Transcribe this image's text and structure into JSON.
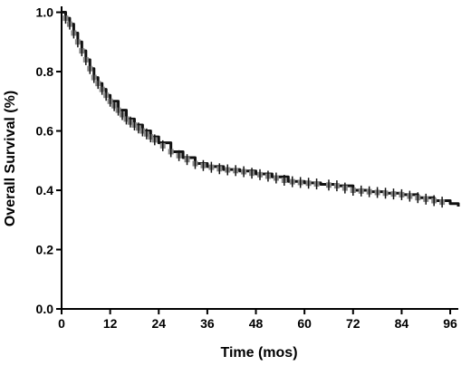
{
  "chart_data": {
    "type": "line",
    "xlabel": "Time (mos)",
    "ylabel": "Overall Survival (%)",
    "xlim": [
      0,
      98
    ],
    "ylim": [
      0,
      1.02
    ],
    "x_ticks": [
      0,
      12,
      24,
      36,
      48,
      60,
      72,
      84,
      96
    ],
    "y_ticks": [
      0.0,
      0.2,
      0.4,
      0.6,
      0.8,
      1.0
    ],
    "x_tick_labels": [
      "0",
      "12",
      "24",
      "36",
      "48",
      "60",
      "72",
      "84",
      "96"
    ],
    "y_tick_labels": [
      "0.0",
      "0.2",
      "0.4",
      "0.6",
      "0.8",
      "1.0"
    ],
    "grid": false,
    "step": true,
    "censor_marks": true,
    "series": [
      {
        "x": [
          0,
          1,
          2,
          3,
          4,
          5,
          6,
          7,
          8,
          9,
          10,
          11,
          12,
          14,
          16,
          18,
          20,
          22,
          24,
          27,
          30,
          33,
          36,
          40,
          44,
          48,
          52,
          56,
          60,
          64,
          68,
          72,
          76,
          80,
          84,
          88,
          92,
          96,
          98
        ],
        "y": [
          1.0,
          0.98,
          0.96,
          0.93,
          0.9,
          0.87,
          0.84,
          0.81,
          0.78,
          0.76,
          0.74,
          0.72,
          0.7,
          0.67,
          0.64,
          0.62,
          0.6,
          0.58,
          0.56,
          0.53,
          0.51,
          0.49,
          0.48,
          0.47,
          0.465,
          0.455,
          0.445,
          0.43,
          0.425,
          0.42,
          0.415,
          0.4,
          0.395,
          0.39,
          0.385,
          0.375,
          0.365,
          0.355,
          0.345
        ],
        "censor_x": [
          1,
          2,
          3,
          4,
          5,
          6,
          7,
          8,
          9,
          10,
          11,
          12,
          13,
          14,
          15,
          16,
          17,
          18,
          19,
          20,
          21,
          22,
          23,
          25,
          27,
          29,
          31,
          33,
          35,
          37,
          39,
          41,
          43,
          45,
          47,
          49,
          51,
          53,
          55,
          57,
          59,
          61,
          63,
          66,
          68,
          70,
          72,
          74,
          76,
          78,
          80,
          82,
          84,
          86,
          88,
          90,
          92,
          94
        ]
      }
    ]
  }
}
